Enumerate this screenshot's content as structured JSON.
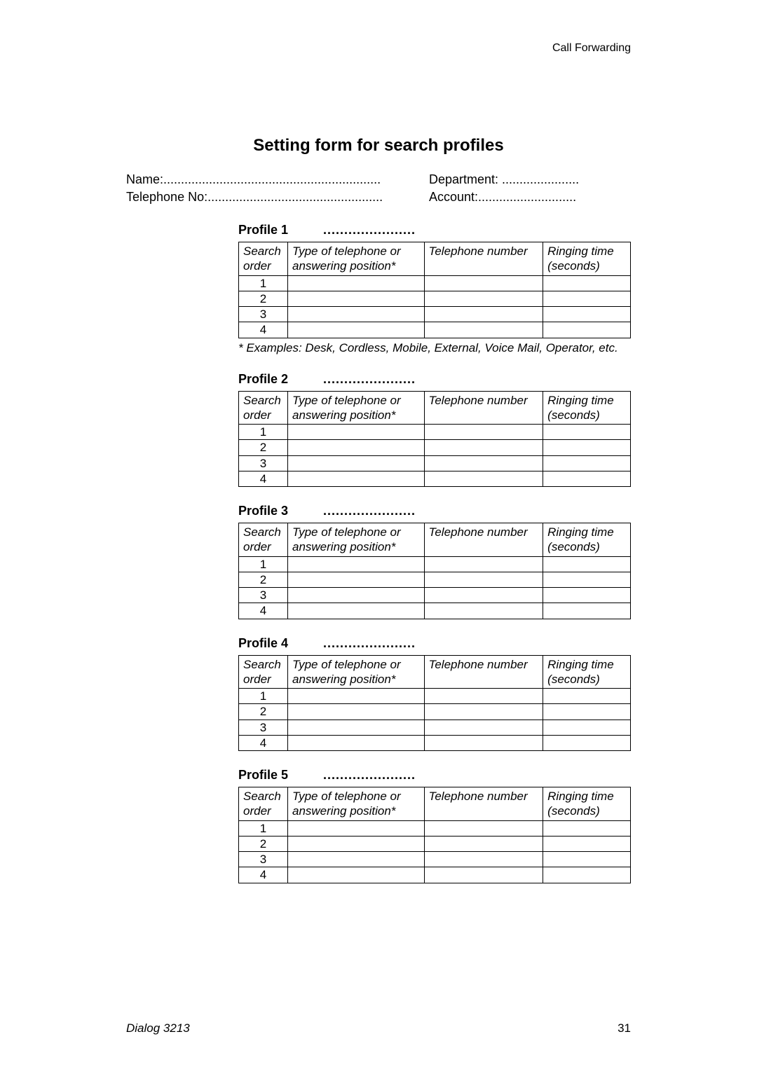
{
  "header": {
    "section": "Call Forwarding"
  },
  "title": "Setting form for search profiles",
  "info": {
    "name_label": "Name:..............................................................",
    "telno_label": "Telephone No:..................................................",
    "dept_label": "Department: ......................",
    "acct_label": "Account:............................"
  },
  "table_headers": {
    "search_order_l1": "Search",
    "search_order_l2": "order",
    "type_l1": "Type of telephone or",
    "type_l2": "answering position*",
    "number": "Telephone number",
    "ring_l1": "Ringing time",
    "ring_l2": "(seconds)"
  },
  "profiles": [
    {
      "label": "Profile 1",
      "dots": "......................",
      "rows": [
        "1",
        "2",
        "3",
        "4"
      ]
    },
    {
      "label": "Profile 2",
      "dots": "......................",
      "rows": [
        "1",
        "2",
        "3",
        "4"
      ]
    },
    {
      "label": "Profile 3",
      "dots": "......................",
      "rows": [
        "1",
        "2",
        "3",
        "4"
      ]
    },
    {
      "label": "Profile 4",
      "dots": "......................",
      "rows": [
        "1",
        "2",
        "3",
        "4"
      ]
    },
    {
      "label": "Profile 5",
      "dots": "......................",
      "rows": [
        "1",
        "2",
        "3",
        "4"
      ]
    }
  ],
  "examples_note": "* Examples: Desk, Cordless, Mobile, External, Voice Mail, Operator, etc.",
  "footer": {
    "model": "Dialog 3213",
    "page_num": "31"
  },
  "colors": {
    "text": "#000000",
    "background": "#ffffff",
    "border": "#000000"
  }
}
